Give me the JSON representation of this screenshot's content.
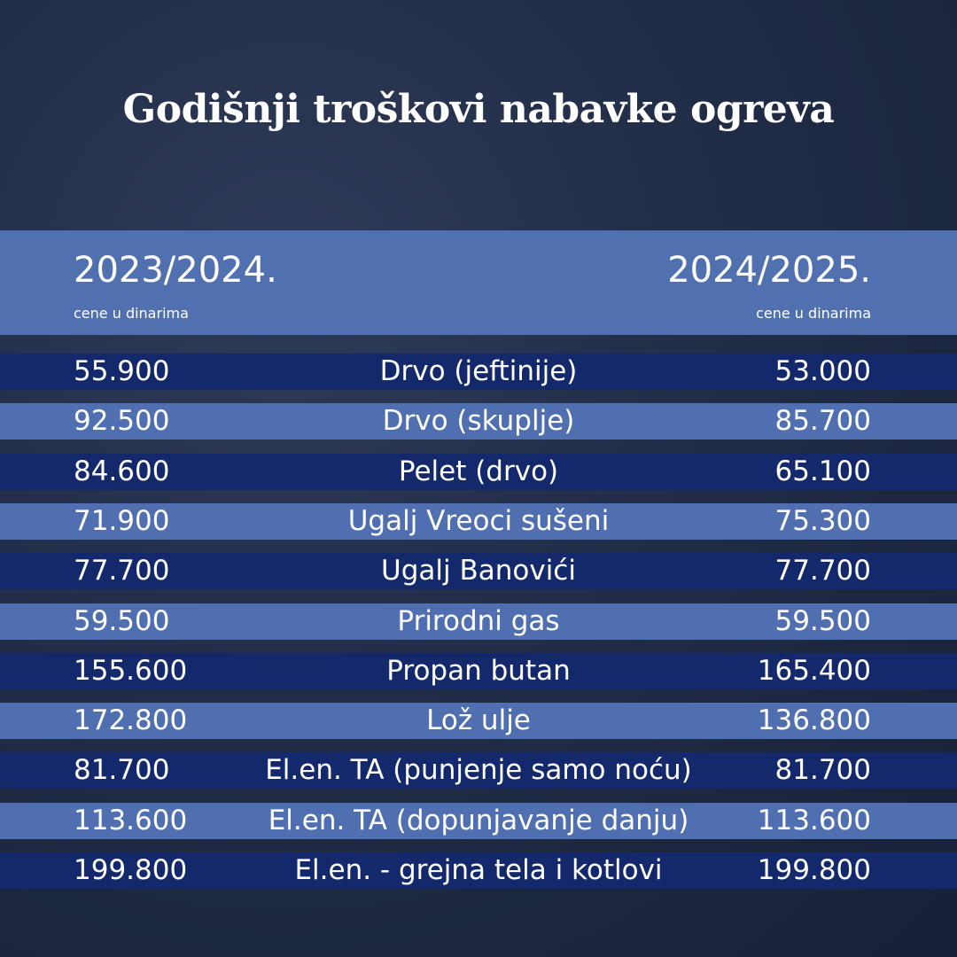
{
  "header": {
    "title": "Godišnji troškovi nabavke ogreva"
  },
  "table": {
    "columns": [
      {
        "year": "2023/2024.",
        "note": "cene u dinarima"
      },
      {
        "year": "2024/2025.",
        "note": "cene u dinarima"
      }
    ],
    "rows": [
      [
        "55.900",
        "Drvo  (jeftinije)",
        "53.000"
      ],
      [
        "92.500",
        "Drvo  (skuplje)",
        "85.700"
      ],
      [
        "84.600",
        "Pelet (drvo)",
        "65.100"
      ],
      [
        "71.900",
        "Ugalj Vreoci sušeni",
        "75.300"
      ],
      [
        "77.700",
        "Ugalj Banovići",
        "77.700"
      ],
      [
        "59.500",
        "Prirodni gas",
        "59.500"
      ],
      [
        "155.600",
        "Propan butan",
        "165.400"
      ],
      [
        "172.800",
        "Lož ulje",
        "136.800"
      ],
      [
        "81.700",
        "El.en. TA (punjenje samo noću)",
        "81.700"
      ],
      [
        "113.600",
        "El.en. TA (dopunjavanje danju)",
        "113.600"
      ],
      [
        "199.800",
        "El.en. - grejna tela i kotlovi",
        "199.800"
      ]
    ]
  }
}
